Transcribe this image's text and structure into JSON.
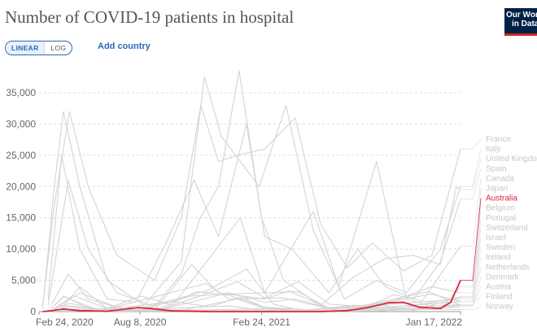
{
  "header": {
    "title": "Number of COVID-19 patients in hospital",
    "logo_line1": "Our World",
    "logo_line2": "in Data",
    "logo_color": "#002147",
    "logo_accent": "#ce261e"
  },
  "controls": {
    "linear_label": "LINEAR",
    "log_label": "LOG",
    "selected_scale": "linear",
    "add_country_label": "Add country",
    "accent_color": "#2a69b6"
  },
  "chart_data": {
    "type": "line",
    "title": "Number of COVID-19 patients in hospital",
    "xlabel": "",
    "ylabel": "",
    "x_range": [
      "2020-02-24",
      "2022-01-17"
    ],
    "x_ticks": [
      "Feb 24, 2020",
      "Aug 8, 2020",
      "Feb 24, 2021",
      "Jan 17, 2022"
    ],
    "ylim": [
      0,
      35000
    ],
    "y_ticks": [
      "0",
      "5,000",
      "10,000",
      "15,000",
      "20,000",
      "25,000",
      "30,000",
      "35,000"
    ],
    "grid": "horizontal dashed",
    "legend_placement": "right",
    "highlighted_series": "Australia",
    "highlight_color": "#d7263d",
    "background_color": "#d4d4d4",
    "series": [
      {
        "name": "France",
        "points": [
          [
            "2020-03-01",
            1000
          ],
          [
            "2020-03-20",
            17000
          ],
          [
            "2020-04-14",
            32000
          ],
          [
            "2020-05-15",
            20000
          ],
          [
            "2020-07-01",
            9000
          ],
          [
            "2020-09-01",
            5000
          ],
          [
            "2020-10-15",
            15000
          ],
          [
            "2020-11-16",
            33000
          ],
          [
            "2020-12-15",
            24000
          ],
          [
            "2021-01-15",
            25000
          ],
          [
            "2021-03-01",
            26000
          ],
          [
            "2021-04-20",
            31000
          ],
          [
            "2021-06-01",
            14000
          ],
          [
            "2021-07-15",
            7000
          ],
          [
            "2021-08-25",
            11000
          ],
          [
            "2021-10-15",
            6500
          ],
          [
            "2021-12-01",
            9000
          ],
          [
            "2022-01-17",
            26000
          ]
        ]
      },
      {
        "name": "Italy",
        "points": [
          [
            "2020-03-01",
            500
          ],
          [
            "2020-03-20",
            20000
          ],
          [
            "2020-04-04",
            32000
          ],
          [
            "2020-05-01",
            20000
          ],
          [
            "2020-06-15",
            5000
          ],
          [
            "2020-08-15",
            1000
          ],
          [
            "2020-10-15",
            8000
          ],
          [
            "2020-11-22",
            37500
          ],
          [
            "2020-12-20",
            28000
          ],
          [
            "2021-01-20",
            24000
          ],
          [
            "2021-02-20",
            20000
          ],
          [
            "2021-04-05",
            33000
          ],
          [
            "2021-05-20",
            13000
          ],
          [
            "2021-07-10",
            2000
          ],
          [
            "2021-09-01",
            5000
          ],
          [
            "2021-10-20",
            3000
          ],
          [
            "2021-12-15",
            10000
          ],
          [
            "2022-01-17",
            20000
          ]
        ]
      },
      {
        "name": "United Kingdom",
        "points": [
          [
            "2020-03-10",
            1000
          ],
          [
            "2020-04-12",
            21000
          ],
          [
            "2020-05-15",
            10000
          ],
          [
            "2020-07-01",
            3000
          ],
          [
            "2020-09-01",
            800
          ],
          [
            "2020-10-15",
            6000
          ],
          [
            "2020-11-15",
            15000
          ],
          [
            "2020-12-15",
            20000
          ],
          [
            "2021-01-18",
            38500
          ],
          [
            "2021-02-24",
            15000
          ],
          [
            "2021-04-01",
            5000
          ],
          [
            "2021-06-01",
            1000
          ],
          [
            "2021-07-25",
            5500
          ],
          [
            "2021-09-15",
            8500
          ],
          [
            "2021-11-01",
            9000
          ],
          [
            "2021-12-15",
            7500
          ],
          [
            "2022-01-10",
            20000
          ],
          [
            "2022-01-17",
            19500
          ]
        ]
      },
      {
        "name": "Spain",
        "points": [
          [
            "2020-03-10",
            2000
          ],
          [
            "2020-04-01",
            25000
          ],
          [
            "2020-05-01",
            10000
          ],
          [
            "2020-06-15",
            2000
          ],
          [
            "2020-08-01",
            1500
          ],
          [
            "2020-09-20",
            11000
          ],
          [
            "2020-11-05",
            21000
          ],
          [
            "2020-12-15",
            12000
          ],
          [
            "2021-01-30",
            30000
          ],
          [
            "2021-03-01",
            12000
          ],
          [
            "2021-04-15",
            10000
          ],
          [
            "2021-06-15",
            3000
          ],
          [
            "2021-08-01",
            10000
          ],
          [
            "2021-09-15",
            4000
          ],
          [
            "2021-11-01",
            2000
          ],
          [
            "2021-12-15",
            8000
          ],
          [
            "2022-01-17",
            18000
          ]
        ]
      },
      {
        "name": "Canada",
        "points": [
          [
            "2020-03-20",
            300
          ],
          [
            "2020-05-01",
            3000
          ],
          [
            "2020-07-01",
            700
          ],
          [
            "2020-09-15",
            500
          ],
          [
            "2020-11-15",
            2500
          ],
          [
            "2021-01-15",
            4800
          ],
          [
            "2021-03-01",
            2200
          ],
          [
            "2021-04-25",
            4800
          ],
          [
            "2021-06-15",
            1200
          ],
          [
            "2021-08-15",
            800
          ],
          [
            "2021-09-30",
            2700
          ],
          [
            "2021-11-15",
            1700
          ],
          [
            "2022-01-17",
            10500
          ]
        ]
      },
      {
        "name": "Japan",
        "points": [
          [
            "2020-04-01",
            500
          ],
          [
            "2020-05-01",
            4000
          ],
          [
            "2020-06-15",
            500
          ],
          [
            "2020-08-10",
            2500
          ],
          [
            "2020-10-01",
            1000
          ],
          [
            "2021-01-20",
            15000
          ],
          [
            "2021-03-01",
            3000
          ],
          [
            "2021-05-20",
            16000
          ],
          [
            "2021-07-01",
            4000
          ],
          [
            "2021-09-01",
            24000
          ],
          [
            "2021-10-20",
            2000
          ],
          [
            "2021-12-15",
            400
          ],
          [
            "2022-01-17",
            4000
          ]
        ]
      },
      {
        "name": "Australia",
        "points": [
          [
            "2020-03-01",
            0
          ],
          [
            "2020-04-05",
            400
          ],
          [
            "2020-05-01",
            150
          ],
          [
            "2020-06-15",
            50
          ],
          [
            "2020-08-05",
            650
          ],
          [
            "2020-08-25",
            500
          ],
          [
            "2020-10-01",
            100
          ],
          [
            "2020-12-01",
            0
          ],
          [
            "2021-06-01",
            0
          ],
          [
            "2021-07-15",
            150
          ],
          [
            "2021-08-15",
            600
          ],
          [
            "2021-09-20",
            1400
          ],
          [
            "2021-10-15",
            1500
          ],
          [
            "2021-11-10",
            700
          ],
          [
            "2021-12-15",
            500
          ],
          [
            "2022-01-01",
            1500
          ],
          [
            "2022-01-17",
            5000
          ]
        ]
      },
      {
        "name": "Belgium",
        "points": [
          [
            "2020-03-15",
            1000
          ],
          [
            "2020-04-12",
            6000
          ],
          [
            "2020-05-15",
            2000
          ],
          [
            "2020-07-15",
            300
          ],
          [
            "2020-09-01",
            300
          ],
          [
            "2020-11-01",
            7500
          ],
          [
            "2020-12-15",
            3000
          ],
          [
            "2021-03-01",
            2000
          ],
          [
            "2021-04-10",
            3300
          ],
          [
            "2021-06-15",
            500
          ],
          [
            "2021-09-01",
            700
          ],
          [
            "2021-12-01",
            4000
          ],
          [
            "2022-01-17",
            3000
          ]
        ]
      },
      {
        "name": "Portugal",
        "points": [
          [
            "2020-03-20",
            500
          ],
          [
            "2020-04-15",
            1300
          ],
          [
            "2020-06-01",
            400
          ],
          [
            "2020-08-01",
            300
          ],
          [
            "2020-11-25",
            3300
          ],
          [
            "2021-01-30",
            6800
          ],
          [
            "2021-03-15",
            1200
          ],
          [
            "2021-05-01",
            200
          ],
          [
            "2021-07-25",
            1000
          ],
          [
            "2021-10-01",
            400
          ],
          [
            "2022-01-17",
            2300
          ]
        ]
      },
      {
        "name": "Switzerland",
        "points": [
          [
            "2020-03-20",
            1000
          ],
          [
            "2020-04-05",
            2400
          ],
          [
            "2020-06-01",
            200
          ],
          [
            "2020-09-01",
            100
          ],
          [
            "2020-11-10",
            3200
          ],
          [
            "2021-01-01",
            2600
          ],
          [
            "2021-03-01",
            700
          ],
          [
            "2021-06-01",
            200
          ],
          [
            "2021-09-01",
            1000
          ],
          [
            "2022-01-17",
            2000
          ]
        ]
      },
      {
        "name": "Israel",
        "points": [
          [
            "2020-04-01",
            300
          ],
          [
            "2020-05-01",
            200
          ],
          [
            "2020-07-15",
            700
          ],
          [
            "2020-10-01",
            1600
          ],
          [
            "2020-12-01",
            800
          ],
          [
            "2021-01-20",
            2300
          ],
          [
            "2021-03-01",
            700
          ],
          [
            "2021-05-01",
            100
          ],
          [
            "2021-09-01",
            1200
          ],
          [
            "2021-11-01",
            150
          ],
          [
            "2022-01-17",
            2400
          ]
        ]
      },
      {
        "name": "Sweden",
        "points": [
          [
            "2020-03-20",
            500
          ],
          [
            "2020-04-20",
            2600
          ],
          [
            "2020-06-15",
            500
          ],
          [
            "2020-09-01",
            100
          ],
          [
            "2021-01-01",
            3000
          ],
          [
            "2021-03-01",
            1500
          ],
          [
            "2021-04-20",
            2000
          ],
          [
            "2021-07-01",
            200
          ],
          [
            "2022-01-17",
            1600
          ]
        ]
      },
      {
        "name": "Ireland",
        "points": [
          [
            "2020-03-20",
            200
          ],
          [
            "2020-04-15",
            900
          ],
          [
            "2020-07-01",
            50
          ],
          [
            "2020-10-20",
            300
          ],
          [
            "2021-01-15",
            2000
          ],
          [
            "2021-03-01",
            500
          ],
          [
            "2021-06-01",
            50
          ],
          [
            "2021-09-01",
            300
          ],
          [
            "2021-12-01",
            600
          ],
          [
            "2022-01-17",
            1000
          ]
        ]
      },
      {
        "name": "Netherlands",
        "points": [
          [
            "2020-03-15",
            500
          ],
          [
            "2020-04-05",
            2500
          ],
          [
            "2020-05-15",
            500
          ],
          [
            "2020-08-01",
            50
          ],
          [
            "2020-11-01",
            2500
          ],
          [
            "2021-01-01",
            2800
          ],
          [
            "2021-04-25",
            3200
          ],
          [
            "2021-06-15",
            500
          ],
          [
            "2021-08-01",
            700
          ],
          [
            "2021-12-01",
            2800
          ],
          [
            "2022-01-17",
            1600
          ]
        ]
      },
      {
        "name": "Denmark",
        "points": [
          [
            "2020-03-20",
            200
          ],
          [
            "2020-04-01",
            500
          ],
          [
            "2020-06-01",
            50
          ],
          [
            "2021-01-01",
            900
          ],
          [
            "2021-03-01",
            200
          ],
          [
            "2021-09-01",
            100
          ],
          [
            "2022-01-17",
            800
          ]
        ]
      },
      {
        "name": "Austria",
        "points": [
          [
            "2020-03-20",
            300
          ],
          [
            "2020-04-01",
            1000
          ],
          [
            "2020-06-01",
            50
          ],
          [
            "2020-11-25",
            4500
          ],
          [
            "2021-01-01",
            2000
          ],
          [
            "2021-04-01",
            2200
          ],
          [
            "2021-07-01",
            100
          ],
          [
            "2021-11-25",
            3200
          ],
          [
            "2022-01-17",
            1000
          ]
        ]
      },
      {
        "name": "Finland",
        "points": [
          [
            "2020-04-01",
            250
          ],
          [
            "2020-06-01",
            50
          ],
          [
            "2020-12-01",
            300
          ],
          [
            "2021-03-01",
            450
          ],
          [
            "2021-06-01",
            50
          ],
          [
            "2022-01-17",
            1100
          ]
        ]
      },
      {
        "name": "Norway",
        "points": [
          [
            "2020-04-01",
            300
          ],
          [
            "2020-06-01",
            20
          ],
          [
            "2020-11-15",
            150
          ],
          [
            "2021-03-15",
            250
          ],
          [
            "2021-07-01",
            20
          ],
          [
            "2021-12-15",
            400
          ],
          [
            "2022-01-17",
            300
          ]
        ]
      }
    ]
  }
}
